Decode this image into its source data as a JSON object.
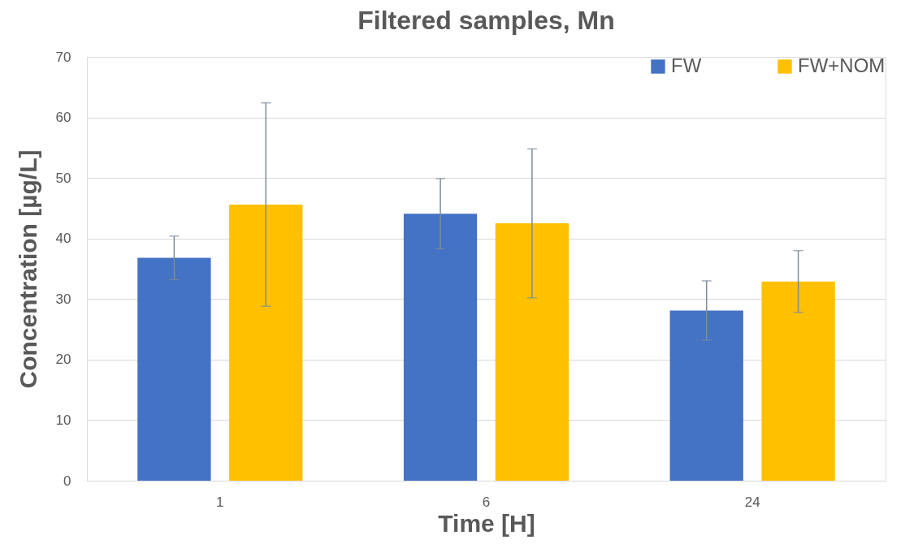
{
  "chart_data": {
    "type": "bar",
    "title": "Filtered samples, Mn",
    "xlabel": "Time [H]",
    "ylabel": "Concentration [µg/L]",
    "categories": [
      "1",
      "6",
      "24"
    ],
    "series": [
      {
        "name": "FW",
        "color": "#4472c4",
        "values": [
          36.8,
          44.1,
          28.1
        ],
        "errors": [
          3.6,
          5.8,
          4.9
        ]
      },
      {
        "name": "FW+NOM",
        "color": "#ffc000",
        "values": [
          45.6,
          42.5,
          32.9
        ],
        "errors": [
          16.8,
          12.3,
          5.1
        ]
      }
    ],
    "ylim": [
      0,
      70
    ],
    "yticks": [
      0,
      10,
      20,
      30,
      40,
      50,
      60,
      70
    ],
    "grid": "y",
    "legend": "top right"
  }
}
